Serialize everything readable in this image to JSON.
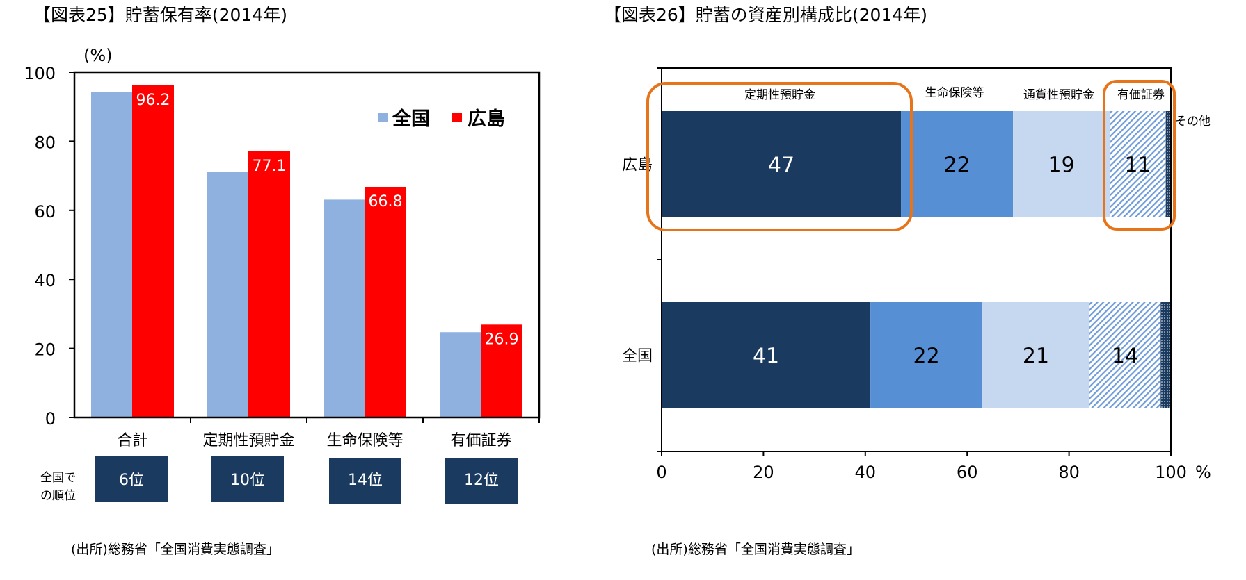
{
  "colors": {
    "national": "#8eb1e0",
    "hiroshima": "#ff0000",
    "navy": "#1a3a60",
    "mid_blue": "#568fd4",
    "light_blue": "#c5d8f0",
    "highlight": "#e8741a"
  },
  "chart_data": [
    {
      "type": "bar",
      "title": "【図表25】貯蓄保有率(2014年)",
      "ylabel": "(%)",
      "ylim": [
        0,
        100
      ],
      "yticks": [
        "0",
        "20",
        "40",
        "60",
        "80",
        "100"
      ],
      "categories": [
        "合計",
        "定期性預貯金",
        "生命保険等",
        "有価証券"
      ],
      "series": [
        {
          "name": "全国",
          "values": [
            94.3,
            71.2,
            63.1,
            24.7
          ]
        },
        {
          "name": "広島",
          "values": [
            96.2,
            77.1,
            66.8,
            26.9
          ],
          "labels": [
            "96.2",
            "77.1",
            "66.8",
            "26.9"
          ]
        }
      ],
      "legend": "top-right",
      "rank_label": [
        "全国で",
        "の順位"
      ],
      "ranks": [
        "6位",
        "10位",
        "14位",
        "12位"
      ],
      "source": "(出所)総務省「全国消費実態調査」"
    },
    {
      "type": "bar",
      "orientation": "horizontal-stacked",
      "title": "【図表26】貯蓄の資産別構成比(2014年)",
      "xlim": [
        0,
        100
      ],
      "xticks": [
        "0",
        "20",
        "40",
        "60",
        "80",
        "100"
      ],
      "xunit": "%",
      "categories": [
        "広島",
        "全国"
      ],
      "series": [
        {
          "name": "定期性預貯金",
          "values": [
            47,
            41
          ],
          "labels": [
            "47",
            "41"
          ]
        },
        {
          "name": "生命保険等",
          "values": [
            22,
            22
          ],
          "labels": [
            "22",
            "22"
          ]
        },
        {
          "name": "通貨性預貯金",
          "values": [
            19,
            21
          ],
          "labels": [
            "19",
            "21"
          ]
        },
        {
          "name": "有価証券",
          "values": [
            11,
            14
          ],
          "labels": [
            "11",
            "14"
          ]
        },
        {
          "name": "その他",
          "values": [
            1,
            2
          ]
        }
      ],
      "highlighted": [
        "定期性預貯金",
        "有価証券"
      ],
      "source": "(出所)総務省「全国消費実態調査」"
    }
  ]
}
